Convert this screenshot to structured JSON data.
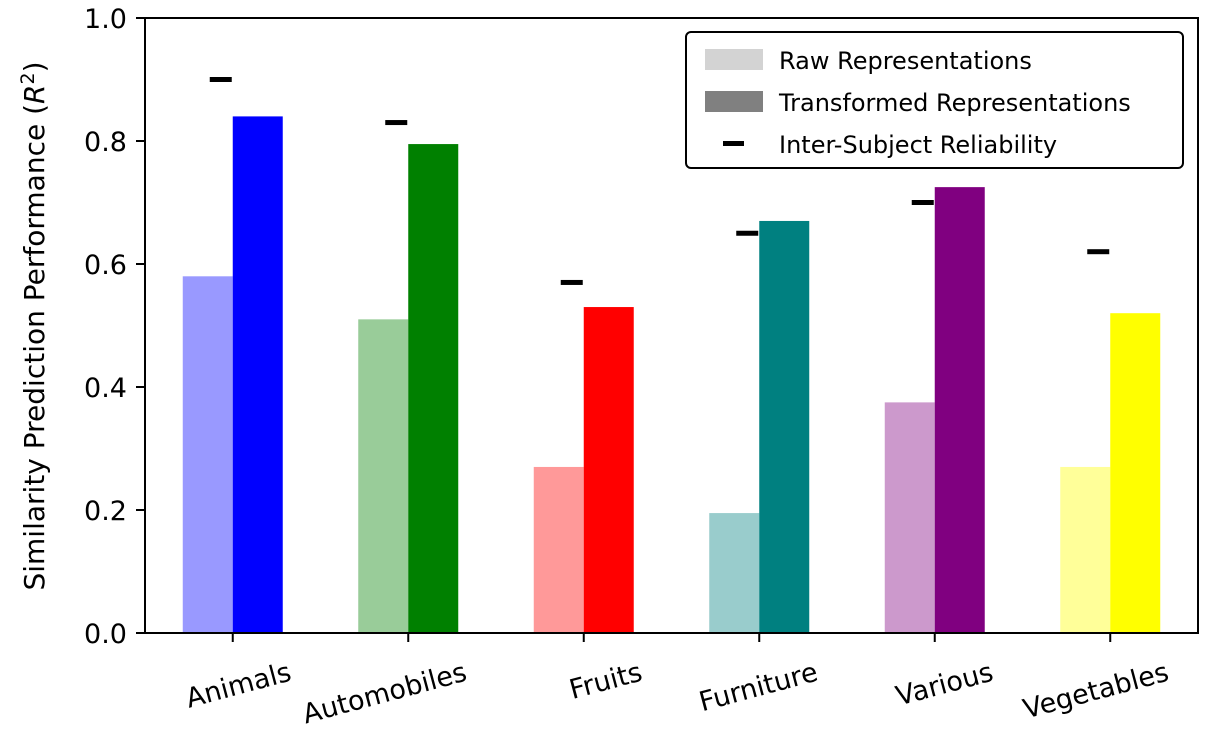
{
  "chart_data": {
    "type": "bar",
    "categories": [
      "Animals",
      "Automobiles",
      "Fruits",
      "Furniture",
      "Various",
      "Vegetables"
    ],
    "series": [
      {
        "name": "Raw Representations",
        "values": [
          0.58,
          0.51,
          0.27,
          0.195,
          0.375,
          0.27
        ],
        "colors": [
          "#9999ff",
          "#99cc99",
          "#ff9999",
          "#99cccc",
          "#cc99cc",
          "#ffff99"
        ]
      },
      {
        "name": "Transformed Representations",
        "values": [
          0.84,
          0.795,
          0.53,
          0.67,
          0.725,
          0.52
        ],
        "colors": [
          "#0000ff",
          "#008000",
          "#ff0000",
          "#008080",
          "#800080",
          "#ffff00"
        ]
      }
    ],
    "reliability": {
      "name": "Inter-Subject Reliability",
      "values": [
        0.9,
        0.83,
        0.57,
        0.65,
        0.7,
        0.62
      ]
    },
    "ylabel": "Similarity Prediction Performance (R²)",
    "ylim": [
      0,
      1.0
    ],
    "yticks": [
      "0.0",
      "0.2",
      "0.4",
      "0.6",
      "0.8",
      "1.0"
    ],
    "legend": {
      "placement": "top-right",
      "swatch_colors": [
        "#d3d3d3",
        "#808080",
        "#000000"
      ]
    },
    "grid": false
  }
}
